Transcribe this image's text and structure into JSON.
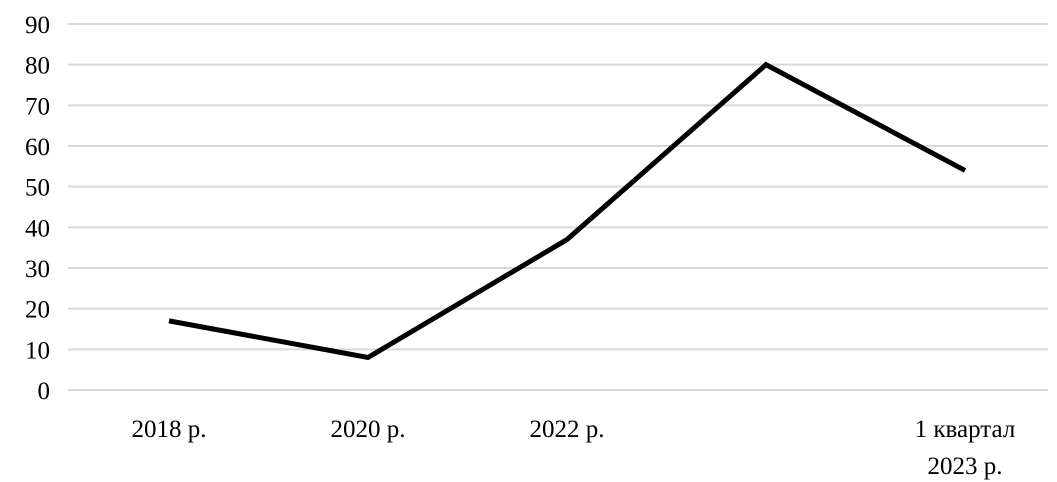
{
  "chart_data": {
    "type": "line",
    "title": "",
    "xlabel": "",
    "ylabel": "",
    "categories": [
      "2018 р.",
      "2020 р.",
      "2022 р.",
      "",
      "1 квартал 2023 р."
    ],
    "category_lines": [
      [
        "2018 р."
      ],
      [
        "2020 р."
      ],
      [
        "2022 р."
      ],
      [],
      [
        "1 квартал",
        "2023 р."
      ]
    ],
    "series": [
      {
        "values": [
          17,
          8,
          37,
          80,
          54
        ],
        "color": "#000000"
      }
    ],
    "ylim": [
      0,
      90
    ],
    "yticks": [
      "0",
      "10",
      "20",
      "30",
      "40",
      "50",
      "60",
      "70",
      "80",
      "90"
    ],
    "grid": true,
    "legend": "none",
    "gridline_color": "#d9d9d9"
  }
}
